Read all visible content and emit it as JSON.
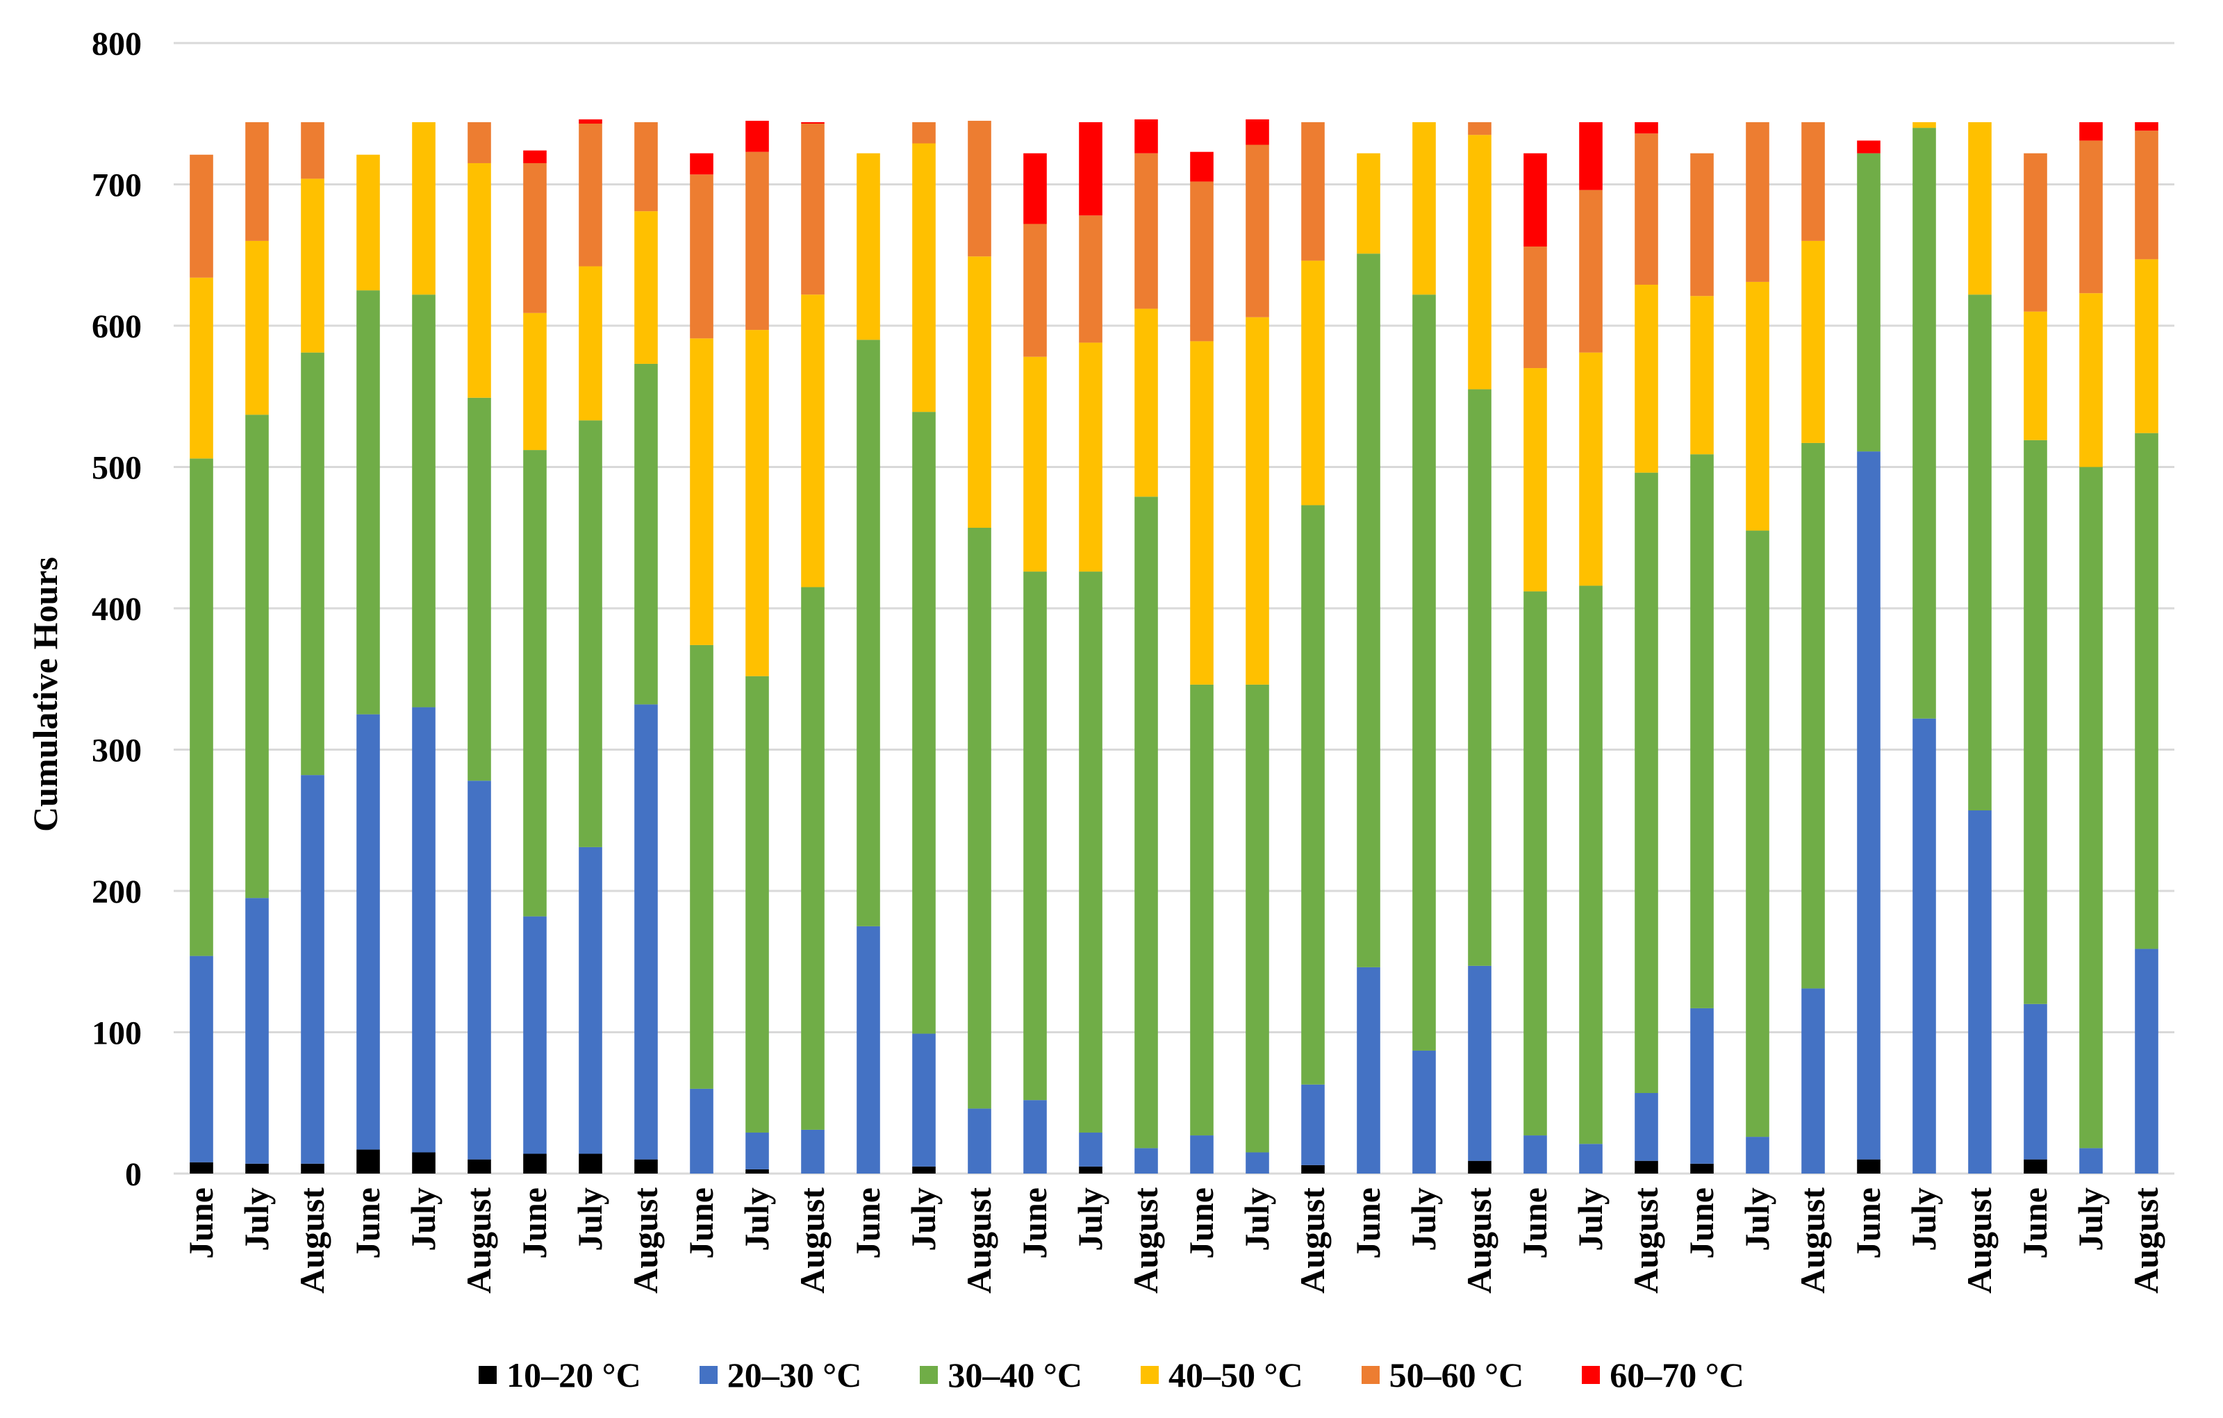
{
  "chart_data": {
    "type": "bar",
    "stacked": true,
    "title": "",
    "xlabel": "",
    "ylabel": "Cumulative Hours",
    "ylim": [
      0,
      800
    ],
    "yticks": [
      "0",
      "100",
      "200",
      "300",
      "400",
      "500",
      "600",
      "700",
      "800"
    ],
    "grid": true,
    "legend_position": "bottom",
    "categories": [
      "June",
      "July",
      "August",
      "June",
      "July",
      "August",
      "June",
      "July",
      "August",
      "June",
      "July",
      "August",
      "June",
      "July",
      "August",
      "June",
      "July",
      "August",
      "June",
      "July",
      "August",
      "June",
      "July",
      "August",
      "June",
      "July",
      "August",
      "June",
      "July",
      "August",
      "June",
      "July",
      "August",
      "June",
      "July",
      "August"
    ],
    "series": [
      {
        "name": "10–20 °C",
        "color": "#000000",
        "values": [
          8,
          7,
          7,
          17,
          15,
          10,
          14,
          14,
          10,
          0,
          3,
          0,
          0,
          5,
          0,
          0,
          5,
          0,
          0,
          0,
          6,
          0,
          0,
          9,
          0,
          0,
          9,
          7,
          0,
          0,
          10,
          0,
          0,
          10,
          0,
          0
        ]
      },
      {
        "name": "20–30 °C",
        "color": "#4472C4",
        "values": [
          146,
          188,
          275,
          308,
          315,
          268,
          168,
          217,
          322,
          60,
          26,
          31,
          175,
          94,
          46,
          52,
          24,
          18,
          27,
          15,
          57,
          146,
          87,
          138,
          27,
          21,
          48,
          110,
          26,
          131,
          501,
          322,
          257,
          110,
          18,
          159
        ]
      },
      {
        "name": "30–40 °C",
        "color": "#70AD47",
        "values": [
          352,
          342,
          299,
          300,
          292,
          271,
          330,
          302,
          241,
          314,
          323,
          384,
          415,
          440,
          411,
          374,
          397,
          461,
          319,
          331,
          410,
          505,
          535,
          408,
          385,
          395,
          439,
          392,
          429,
          386,
          211,
          418,
          365,
          399,
          482,
          365
        ]
      },
      {
        "name": "40–50 °C",
        "color": "#FFC000",
        "values": [
          128,
          123,
          123,
          96,
          122,
          166,
          97,
          109,
          108,
          217,
          245,
          207,
          132,
          190,
          192,
          152,
          162,
          133,
          243,
          260,
          173,
          71,
          122,
          180,
          158,
          165,
          133,
          112,
          176,
          143,
          0,
          4,
          122,
          91,
          123,
          123
        ]
      },
      {
        "name": "50–60 °C",
        "color": "#ED7D31",
        "values": [
          87,
          84,
          40,
          0,
          0,
          29,
          106,
          101,
          63,
          116,
          126,
          121,
          0,
          15,
          96,
          94,
          90,
          110,
          113,
          122,
          98,
          0,
          0,
          9,
          86,
          115,
          107,
          101,
          113,
          84,
          0,
          0,
          0,
          112,
          108,
          91
        ]
      },
      {
        "name": "60–70 °C",
        "color": "#FF0000",
        "values": [
          0,
          0,
          0,
          0,
          0,
          0,
          9,
          3,
          0,
          15,
          22,
          1,
          0,
          0,
          0,
          50,
          66,
          24,
          21,
          18,
          0,
          0,
          0,
          0,
          66,
          48,
          8,
          0,
          0,
          0,
          9,
          0,
          0,
          0,
          13,
          6
        ]
      }
    ]
  }
}
